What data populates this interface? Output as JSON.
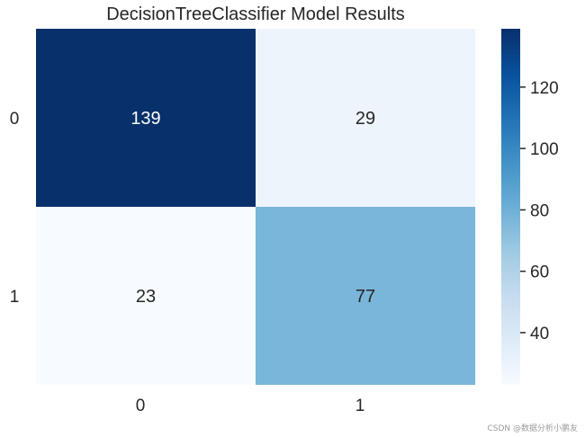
{
  "chart_data": {
    "type": "heatmap",
    "title": "DecisionTreeClassifier Model Results",
    "x_categories": [
      "0",
      "1"
    ],
    "y_categories": [
      "0",
      "1"
    ],
    "values": [
      [
        139,
        29
      ],
      [
        23,
        77
      ]
    ],
    "colormap": "Blues",
    "colorbar": {
      "range": [
        23,
        139
      ],
      "ticks": [
        40,
        60,
        80,
        100,
        120
      ]
    },
    "colors": {
      "low": "#f7fbff",
      "high": "#08306b",
      "text_dark": "#262626",
      "text_light": "#ffffff"
    },
    "grid": false
  },
  "watermark": "CSDN @数据分析小鹏友"
}
